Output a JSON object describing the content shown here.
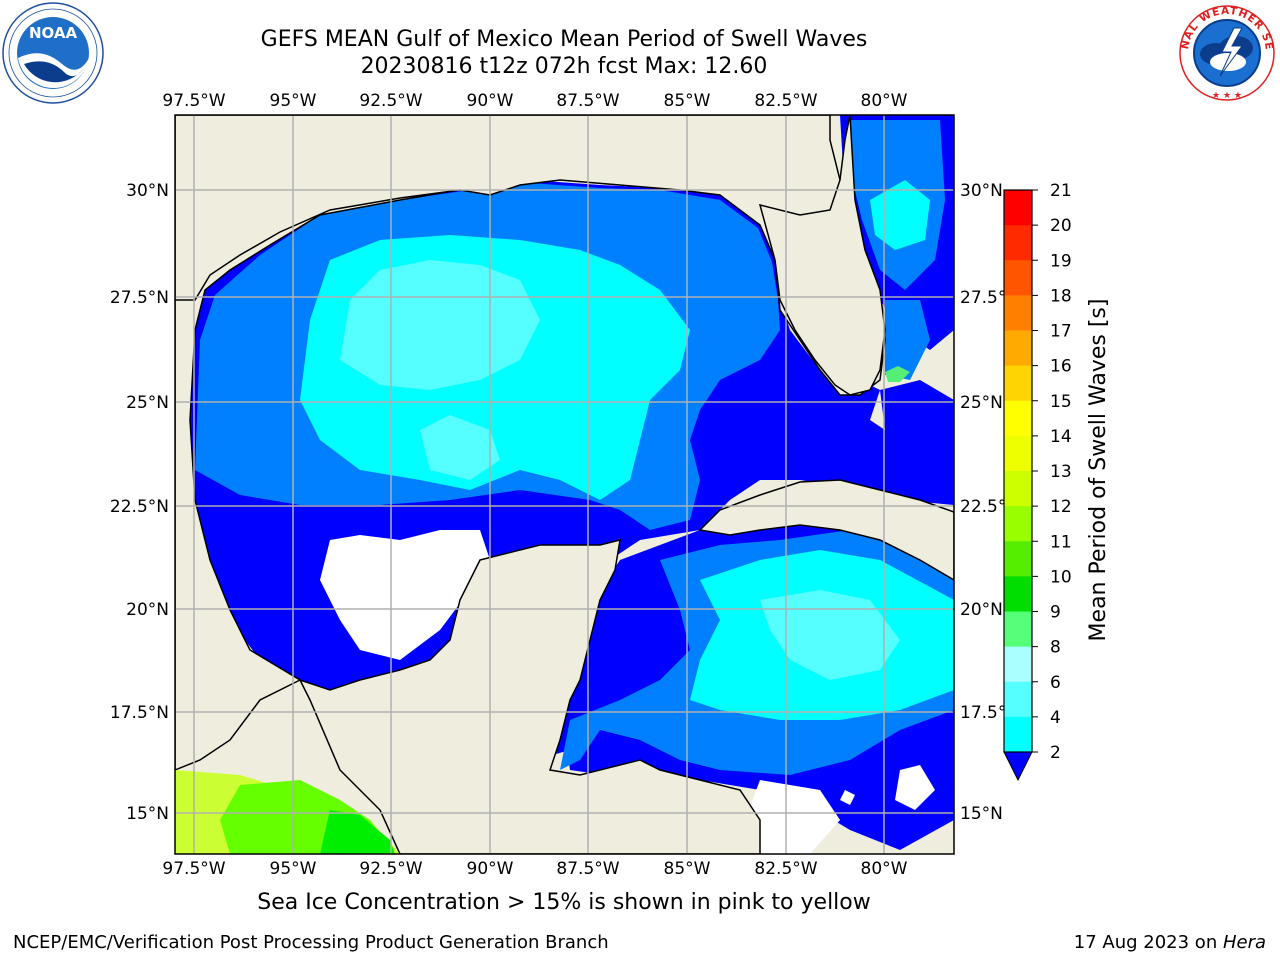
{
  "title_line1": "GEFS MEAN Gulf of Mexico Mean Period of Swell Waves",
  "title_line2": "20230816 t12z 072h fcst   Max: 12.60",
  "lon_ticks": [
    "97.5°W",
    "95°W",
    "92.5°W",
    "90°W",
    "87.5°W",
    "85°W",
    "82.5°W",
    "80°W"
  ],
  "lat_ticks_left": [
    "30°N",
    "27.5°N",
    "25°N",
    "22.5°N",
    "20°N",
    "17.5°N",
    "15°N"
  ],
  "lat_ticks_right": [
    "30°N",
    "27.5°",
    "25°N",
    "22.5°",
    "20°N",
    "17.5°",
    "15°N"
  ],
  "colorbar": {
    "label": "Mean Period of Swell Waves [s]",
    "ticks": [
      "21",
      "20",
      "19",
      "18",
      "17",
      "16",
      "15",
      "14",
      "13",
      "12",
      "11",
      "10",
      "9",
      "8",
      "6",
      "4",
      "2"
    ],
    "colors": [
      "#ff0000",
      "#ff2a00",
      "#ff5500",
      "#ff7f00",
      "#ffaa00",
      "#ffd400",
      "#ffff00",
      "#eeff00",
      "#ccff00",
      "#99ff00",
      "#55ee00",
      "#00dd00",
      "#55ff77",
      "#aaffff",
      "#55ffff",
      "#00ffff",
      "#0080ff",
      "#0000ff"
    ]
  },
  "ice_note": "Sea Ice Concentration > 15% is shown in pink to yellow",
  "footer_left": "NCEP/EMC/Verification Post Processing Product Generation Branch",
  "footer_right_date": "17 Aug 2023 on ",
  "footer_right_host": "Hera",
  "logos": {
    "noaa": {
      "text": "NOAA",
      "ring": "NATIONAL OCEANIC AND ATMOSPHERIC ADMINISTRATION • U.S. DEPARTMENT OF COMMERCE"
    },
    "nws": {
      "ring": "NATIONAL WEATHER SERVICE"
    }
  }
}
